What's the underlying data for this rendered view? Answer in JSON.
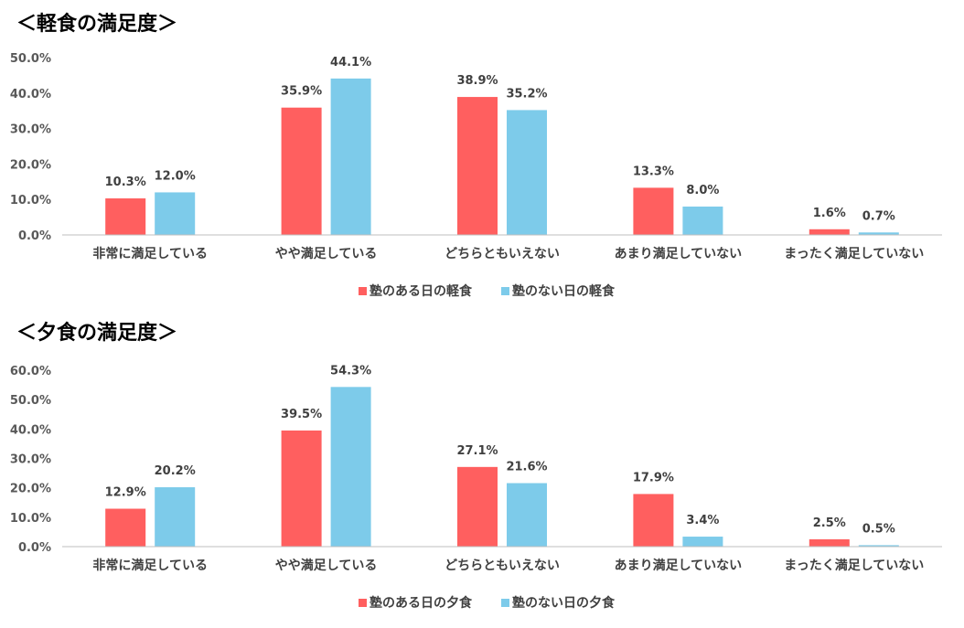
{
  "colors": {
    "series_a": "#FF5F5F",
    "series_b": "#7DCBEA",
    "axis": "#BFBFBF"
  },
  "chart_data": [
    {
      "type": "bar",
      "title": "＜軽食の満足度＞",
      "categories": [
        "非常に満足している",
        "やや満足している",
        "どちらともいえない",
        "あまり満足していない",
        "まったく満足していない"
      ],
      "series": [
        {
          "name": "塾のある日の軽食",
          "values": [
            10.3,
            35.9,
            38.9,
            13.3,
            1.6
          ],
          "labels": [
            "10.3%",
            "35.9%",
            "38.9%",
            "13.3%",
            "1.6%"
          ]
        },
        {
          "name": "塾のない日の軽食",
          "values": [
            12.0,
            44.1,
            35.2,
            8.0,
            0.7
          ],
          "labels": [
            "12.0%",
            "44.1%",
            "35.2%",
            "8.0%",
            "0.7%"
          ]
        }
      ],
      "ylim": [
        0,
        50
      ],
      "yticks": [
        "0.0%",
        "10.0%",
        "20.0%",
        "30.0%",
        "40.0%",
        "50.0%"
      ],
      "legend_position": "bottom",
      "grid": false
    },
    {
      "type": "bar",
      "title": "＜夕食の満足度＞",
      "categories": [
        "非常に満足している",
        "やや満足している",
        "どちらともいえない",
        "あまり満足していない",
        "まったく満足していない"
      ],
      "series": [
        {
          "name": "塾のある日の夕食",
          "values": [
            12.9,
            39.5,
            27.1,
            17.9,
            2.5
          ],
          "labels": [
            "12.9%",
            "39.5%",
            "27.1%",
            "17.9%",
            "2.5%"
          ]
        },
        {
          "name": "塾のない日の夕食",
          "values": [
            20.2,
            54.3,
            21.6,
            3.4,
            0.5
          ],
          "labels": [
            "20.2%",
            "54.3%",
            "21.6%",
            "3.4%",
            "0.5%"
          ]
        }
      ],
      "ylim": [
        0,
        60
      ],
      "yticks": [
        "0.0%",
        "10.0%",
        "20.0%",
        "30.0%",
        "40.0%",
        "50.0%",
        "60.0%"
      ],
      "legend_position": "bottom",
      "grid": false
    }
  ]
}
